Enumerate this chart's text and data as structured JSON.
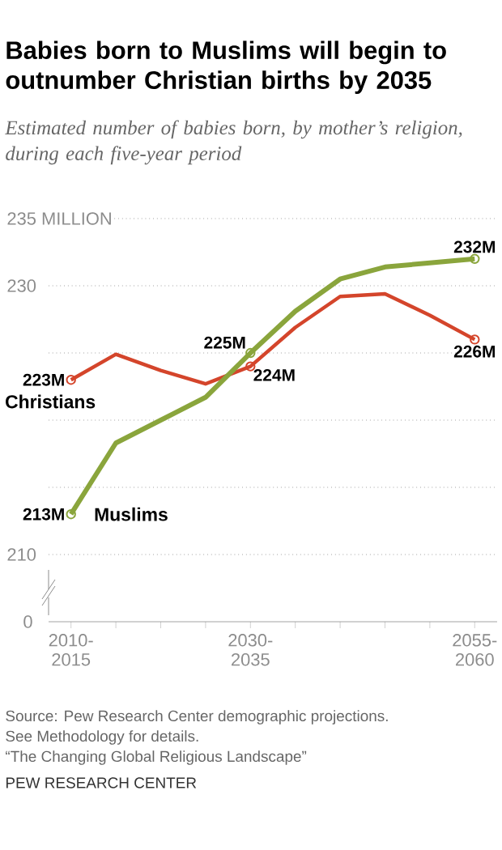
{
  "chart_data": {
    "type": "line",
    "title": "Babies born to Muslims will begin to outnumber Christian births by 2035",
    "subtitle": "Estimated number of babies born, by mother’s religion, during each five-year period",
    "categories": [
      "2010-2015",
      null,
      null,
      null,
      "2030-2035",
      null,
      null,
      null,
      null,
      "2055-2060"
    ],
    "series": [
      {
        "name": "Christians",
        "color": "#d4452b",
        "values": [
          223,
          224.9,
          223.7,
          222.7,
          224,
          226.9,
          229.2,
          229.4,
          227.8,
          226
        ],
        "value_labels": [
          "223M",
          null,
          null,
          null,
          "224M",
          null,
          null,
          null,
          null,
          "226M"
        ]
      },
      {
        "name": "Muslims",
        "color": "#8aa53c",
        "values": [
          213,
          218.3,
          220,
          221.7,
          225,
          228.1,
          230.5,
          231.4,
          231.7,
          232
        ],
        "value_labels": [
          "213M",
          null,
          null,
          null,
          "225M",
          null,
          null,
          null,
          null,
          "232M"
        ]
      }
    ],
    "ylim": [
      210,
      235
    ],
    "yticks": [
      210,
      {
        "value": 215,
        "label": null
      },
      {
        "value": 220,
        "label": null
      },
      {
        "value": 225,
        "label": null
      },
      230,
      {
        "value": 235,
        "label": "235 MILLION"
      }
    ],
    "grid": "y",
    "line_style": "solid",
    "legend": false,
    "annotations": [
      "0",
      "Source: Pew Research Center demographic projections.",
      "See Methodology for details.",
      "“The Changing Global Religious Landscape”",
      "PEW RESEARCH CENTER"
    ]
  }
}
